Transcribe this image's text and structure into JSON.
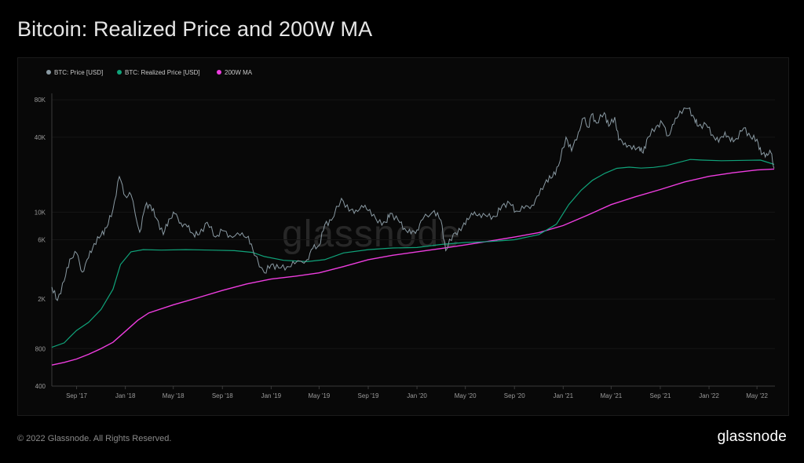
{
  "title": "Bitcoin: Realized Price and 200W MA",
  "footer": {
    "copyright": "© 2022 Glassnode. All Rights Reserved.",
    "logo": "glassnode"
  },
  "watermark": "glassnode",
  "colors": {
    "price": "#8a9aa3",
    "realized": "#10a37a",
    "ma200": "#ee3ddf"
  },
  "chart_data": {
    "type": "line",
    "title": "Bitcoin: Realized Price and 200W MA",
    "yscale": "log",
    "ylim": [
      400,
      90000
    ],
    "xlim": [
      "2017-07-01",
      "2022-06-15"
    ],
    "y_ticks": [
      {
        "value": 400,
        "label": "400"
      },
      {
        "value": 800,
        "label": "800"
      },
      {
        "value": 2000,
        "label": "2K"
      },
      {
        "value": 6000,
        "label": "6K"
      },
      {
        "value": 10000,
        "label": "10K"
      },
      {
        "value": 40000,
        "label": "40K"
      },
      {
        "value": 80000,
        "label": "80K"
      }
    ],
    "x_ticks": [
      {
        "date": "2017-09-01",
        "label": "Sep '17"
      },
      {
        "date": "2018-01-01",
        "label": "Jan '18"
      },
      {
        "date": "2018-05-01",
        "label": "May '18"
      },
      {
        "date": "2018-09-01",
        "label": "Sep '18"
      },
      {
        "date": "2019-01-01",
        "label": "Jan '19"
      },
      {
        "date": "2019-05-01",
        "label": "May '19"
      },
      {
        "date": "2019-09-01",
        "label": "Sep '19"
      },
      {
        "date": "2020-01-01",
        "label": "Jan '20"
      },
      {
        "date": "2020-05-01",
        "label": "May '20"
      },
      {
        "date": "2020-09-01",
        "label": "Sep '20"
      },
      {
        "date": "2021-01-01",
        "label": "Jan '21"
      },
      {
        "date": "2021-05-01",
        "label": "May '21"
      },
      {
        "date": "2021-09-01",
        "label": "Sep '21"
      },
      {
        "date": "2022-01-01",
        "label": "Jan '22"
      },
      {
        "date": "2022-05-01",
        "label": "May '22"
      }
    ],
    "legend_position": "top-left",
    "series": [
      {
        "key": "price",
        "name": "BTC: Price [USD]",
        "points": [
          [
            "2017-07-01",
            2500
          ],
          [
            "2017-07-15",
            1950
          ],
          [
            "2017-08-01",
            2800
          ],
          [
            "2017-08-15",
            4200
          ],
          [
            "2017-09-01",
            4700
          ],
          [
            "2017-09-15",
            3300
          ],
          [
            "2017-10-01",
            4300
          ],
          [
            "2017-10-15",
            5600
          ],
          [
            "2017-11-01",
            6500
          ],
          [
            "2017-11-15",
            7500
          ],
          [
            "2017-12-01",
            10500
          ],
          [
            "2017-12-17",
            19300
          ],
          [
            "2018-01-01",
            13500
          ],
          [
            "2018-01-15",
            13800
          ],
          [
            "2018-02-06",
            6900
          ],
          [
            "2018-02-20",
            11200
          ],
          [
            "2018-03-05",
            11400
          ],
          [
            "2018-03-20",
            8900
          ],
          [
            "2018-04-06",
            6600
          ],
          [
            "2018-04-20",
            8800
          ],
          [
            "2018-05-05",
            9700
          ],
          [
            "2018-05-20",
            8200
          ],
          [
            "2018-06-05",
            7600
          ],
          [
            "2018-06-20",
            6700
          ],
          [
            "2018-07-05",
            6600
          ],
          [
            "2018-07-25",
            8300
          ],
          [
            "2018-08-15",
            6300
          ],
          [
            "2018-09-01",
            7100
          ],
          [
            "2018-09-20",
            6500
          ],
          [
            "2018-10-15",
            6500
          ],
          [
            "2018-11-05",
            6400
          ],
          [
            "2018-11-20",
            4500
          ],
          [
            "2018-12-15",
            3250
          ],
          [
            "2019-01-01",
            3800
          ],
          [
            "2019-01-20",
            3550
          ],
          [
            "2019-02-10",
            3650
          ],
          [
            "2019-03-01",
            3850
          ],
          [
            "2019-04-01",
            4150
          ],
          [
            "2019-04-15",
            5100
          ],
          [
            "2019-05-01",
            5400
          ],
          [
            "2019-05-15",
            7900
          ],
          [
            "2019-06-01",
            8600
          ],
          [
            "2019-06-26",
            12900
          ],
          [
            "2019-07-15",
            10200
          ],
          [
            "2019-08-01",
            10400
          ],
          [
            "2019-08-20",
            10900
          ],
          [
            "2019-09-05",
            10500
          ],
          [
            "2019-09-25",
            8200
          ],
          [
            "2019-10-15",
            8300
          ],
          [
            "2019-10-26",
            9800
          ],
          [
            "2019-11-15",
            8600
          ],
          [
            "2019-12-01",
            7400
          ],
          [
            "2019-12-17",
            6700
          ],
          [
            "2020-01-01",
            7200
          ],
          [
            "2020-01-15",
            8700
          ],
          [
            "2020-02-13",
            10300
          ],
          [
            "2020-03-01",
            8600
          ],
          [
            "2020-03-13",
            4900
          ],
          [
            "2020-04-01",
            6700
          ],
          [
            "2020-04-20",
            7100
          ],
          [
            "2020-05-05",
            8900
          ],
          [
            "2020-05-20",
            9500
          ],
          [
            "2020-06-05",
            9700
          ],
          [
            "2020-06-25",
            9200
          ],
          [
            "2020-07-15",
            9200
          ],
          [
            "2020-08-01",
            11300
          ],
          [
            "2020-08-20",
            11800
          ],
          [
            "2020-09-05",
            10200
          ],
          [
            "2020-09-25",
            10700
          ],
          [
            "2020-10-15",
            11400
          ],
          [
            "2020-11-01",
            13600
          ],
          [
            "2020-11-20",
            18200
          ],
          [
            "2020-12-05",
            19100
          ],
          [
            "2020-12-20",
            23500
          ],
          [
            "2021-01-08",
            40000
          ],
          [
            "2021-01-22",
            31000
          ],
          [
            "2021-02-08",
            44000
          ],
          [
            "2021-02-21",
            57000
          ],
          [
            "2021-03-05",
            48000
          ],
          [
            "2021-03-13",
            61000
          ],
          [
            "2021-03-25",
            52000
          ],
          [
            "2021-04-14",
            63000
          ],
          [
            "2021-04-25",
            49000
          ],
          [
            "2021-05-10",
            58000
          ],
          [
            "2021-05-20",
            38000
          ],
          [
            "2021-06-05",
            36000
          ],
          [
            "2021-06-22",
            32000
          ],
          [
            "2021-07-10",
            33500
          ],
          [
            "2021-07-20",
            29800
          ],
          [
            "2021-08-01",
            40000
          ],
          [
            "2021-08-22",
            49000
          ],
          [
            "2021-09-06",
            52000
          ],
          [
            "2021-09-21",
            41000
          ],
          [
            "2021-10-05",
            51000
          ],
          [
            "2021-10-20",
            65000
          ],
          [
            "2021-11-10",
            68000
          ],
          [
            "2021-11-25",
            57000
          ],
          [
            "2021-12-05",
            49000
          ],
          [
            "2021-12-25",
            50500
          ],
          [
            "2022-01-10",
            41800
          ],
          [
            "2022-01-25",
            36500
          ],
          [
            "2022-02-10",
            44000
          ],
          [
            "2022-02-24",
            37000
          ],
          [
            "2022-03-10",
            39000
          ],
          [
            "2022-03-29",
            47500
          ],
          [
            "2022-04-15",
            40000
          ],
          [
            "2022-05-01",
            38500
          ],
          [
            "2022-05-12",
            29000
          ],
          [
            "2022-05-25",
            29500
          ],
          [
            "2022-06-05",
            30000
          ],
          [
            "2022-06-13",
            22500
          ]
        ]
      },
      {
        "key": "realized",
        "name": "BTC: Realized Price [USD]",
        "points": [
          [
            "2017-07-01",
            820
          ],
          [
            "2017-08-01",
            890
          ],
          [
            "2017-08-15",
            990
          ],
          [
            "2017-09-01",
            1120
          ],
          [
            "2017-10-01",
            1300
          ],
          [
            "2017-11-01",
            1650
          ],
          [
            "2017-12-01",
            2400
          ],
          [
            "2017-12-20",
            3800
          ],
          [
            "2018-01-15",
            4800
          ],
          [
            "2018-02-15",
            5000
          ],
          [
            "2018-04-01",
            4950
          ],
          [
            "2018-06-01",
            5000
          ],
          [
            "2018-08-01",
            4950
          ],
          [
            "2018-10-01",
            4900
          ],
          [
            "2018-11-15",
            4750
          ],
          [
            "2018-12-15",
            4400
          ],
          [
            "2019-02-01",
            4100
          ],
          [
            "2019-04-01",
            4000
          ],
          [
            "2019-05-15",
            4150
          ],
          [
            "2019-07-01",
            4700
          ],
          [
            "2019-09-01",
            5000
          ],
          [
            "2019-11-01",
            5150
          ],
          [
            "2020-01-01",
            5200
          ],
          [
            "2020-03-01",
            5500
          ],
          [
            "2020-05-01",
            5700
          ],
          [
            "2020-07-01",
            5800
          ],
          [
            "2020-09-01",
            6000
          ],
          [
            "2020-11-01",
            6600
          ],
          [
            "2020-12-15",
            8000
          ],
          [
            "2021-01-15",
            11500
          ],
          [
            "2021-02-15",
            15000
          ],
          [
            "2021-03-15",
            18000
          ],
          [
            "2021-04-15",
            20500
          ],
          [
            "2021-05-15",
            22500
          ],
          [
            "2021-06-15",
            23000
          ],
          [
            "2021-07-15",
            22600
          ],
          [
            "2021-08-15",
            22900
          ],
          [
            "2021-09-15",
            23600
          ],
          [
            "2021-10-15",
            25000
          ],
          [
            "2021-11-15",
            26500
          ],
          [
            "2021-12-15",
            26200
          ],
          [
            "2022-02-01",
            25900
          ],
          [
            "2022-04-01",
            26100
          ],
          [
            "2022-05-10",
            26200
          ],
          [
            "2022-06-13",
            24200
          ]
        ]
      },
      {
        "key": "ma200",
        "name": "200W MA",
        "points": [
          [
            "2017-07-01",
            590
          ],
          [
            "2017-08-01",
            620
          ],
          [
            "2017-09-01",
            660
          ],
          [
            "2017-10-01",
            720
          ],
          [
            "2017-11-01",
            800
          ],
          [
            "2017-12-01",
            900
          ],
          [
            "2018-01-01",
            1100
          ],
          [
            "2018-02-01",
            1350
          ],
          [
            "2018-03-01",
            1550
          ],
          [
            "2018-05-01",
            1800
          ],
          [
            "2018-07-01",
            2050
          ],
          [
            "2018-09-01",
            2350
          ],
          [
            "2018-11-01",
            2650
          ],
          [
            "2019-01-01",
            2900
          ],
          [
            "2019-03-01",
            3050
          ],
          [
            "2019-05-01",
            3250
          ],
          [
            "2019-07-01",
            3650
          ],
          [
            "2019-09-01",
            4150
          ],
          [
            "2019-11-01",
            4500
          ],
          [
            "2020-01-01",
            4800
          ],
          [
            "2020-03-01",
            5100
          ],
          [
            "2020-05-01",
            5450
          ],
          [
            "2020-07-01",
            5850
          ],
          [
            "2020-09-01",
            6300
          ],
          [
            "2020-11-01",
            6850
          ],
          [
            "2021-01-01",
            7800
          ],
          [
            "2021-03-01",
            9400
          ],
          [
            "2021-05-01",
            11500
          ],
          [
            "2021-07-01",
            13300
          ],
          [
            "2021-09-01",
            15200
          ],
          [
            "2021-11-01",
            17500
          ],
          [
            "2022-01-01",
            19400
          ],
          [
            "2022-03-01",
            20700
          ],
          [
            "2022-05-01",
            21800
          ],
          [
            "2022-06-13",
            22200
          ]
        ]
      }
    ]
  }
}
